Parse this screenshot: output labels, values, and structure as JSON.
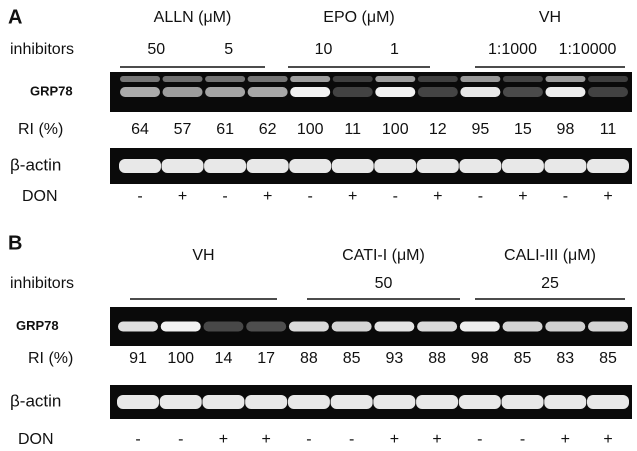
{
  "panels": [
    {
      "label": "A",
      "inhibitors_label": "inhibitors",
      "groups": [
        {
          "name": "ALLN (μM)",
          "doses": [
            "50",
            "5"
          ]
        },
        {
          "name": "EPO (μM)",
          "doses": [
            "10",
            "1"
          ]
        },
        {
          "name": "VH",
          "doses": [
            "1:1000",
            "1:10000"
          ]
        }
      ],
      "grp78_label": "GRP78",
      "ri_label": "RI (%)",
      "ri": [
        64,
        57,
        61,
        62,
        100,
        11,
        100,
        12,
        95,
        15,
        98,
        11
      ],
      "actin_label": "β-actin",
      "don_label": "DON",
      "don": [
        "-",
        "+",
        "-",
        "+",
        "-",
        "+",
        "-",
        "+",
        "-",
        "+",
        "-",
        "+"
      ]
    },
    {
      "label": "B",
      "inhibitors_label": "inhibitors",
      "groups": [
        {
          "name": "VH",
          "doses": []
        },
        {
          "name": "CATI-I (μM)",
          "doses": [
            "50"
          ]
        },
        {
          "name": "CALI-III (μM)",
          "doses": [
            "25"
          ]
        }
      ],
      "grp78_label": "GRP78",
      "ri_label": "RI (%)",
      "ri": [
        91,
        100,
        14,
        17,
        88,
        85,
        93,
        88,
        98,
        85,
        83,
        85
      ],
      "actin_label": "β-actin",
      "don_label": "DON",
      "don": [
        "-",
        "-",
        "+",
        "+",
        "-",
        "-",
        "+",
        "+",
        "-",
        "-",
        "+",
        "+"
      ]
    }
  ]
}
